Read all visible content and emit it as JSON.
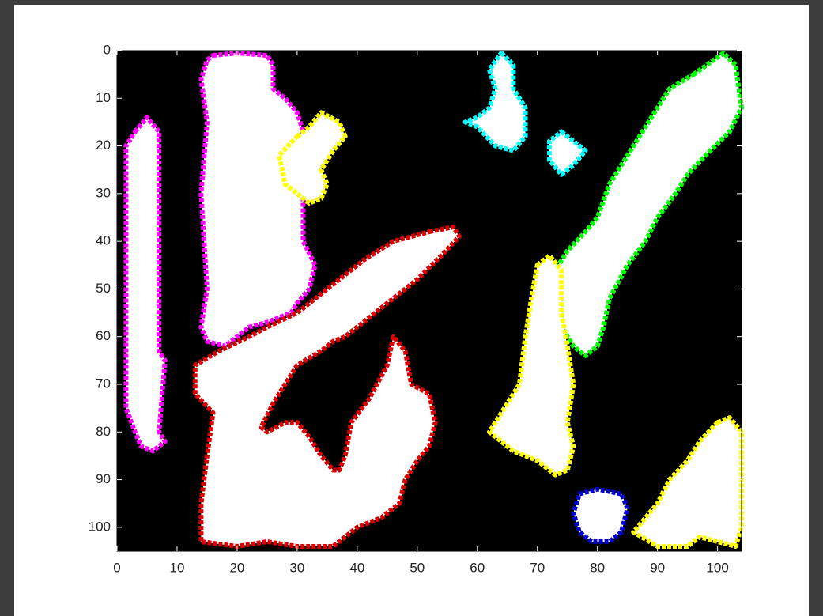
{
  "chart_data": {
    "type": "image-boundaries",
    "xlim": [
      0,
      104
    ],
    "ylim": [
      0,
      105
    ],
    "y_reversed": true,
    "xticks": [
      0,
      10,
      20,
      30,
      40,
      50,
      60,
      70,
      80,
      90,
      100
    ],
    "yticks": [
      0,
      10,
      20,
      30,
      40,
      50,
      60,
      70,
      80,
      90,
      100
    ],
    "background": "#000000",
    "fill": "#ffffff",
    "boundaries": [
      {
        "color": "#ff00ff",
        "x": [
          3,
          5,
          7,
          7,
          8,
          7,
          8,
          6,
          4,
          3,
          1.5,
          1.5
        ],
        "y": [
          17,
          14,
          17,
          63,
          65,
          80,
          82,
          84,
          83,
          80,
          75,
          20
        ]
      },
      {
        "color": "#ff00ff",
        "x": [
          16,
          20,
          25,
          26,
          26,
          28,
          30,
          31,
          30,
          31,
          31,
          33,
          32,
          30,
          29,
          25,
          22,
          20,
          18,
          15,
          14,
          15,
          14,
          15,
          14,
          15
        ],
        "y": [
          1,
          0.5,
          1,
          3,
          8,
          10,
          13,
          17,
          25,
          30,
          40,
          45,
          50,
          53,
          55,
          57,
          58,
          60,
          62,
          61,
          58,
          50,
          30,
          15,
          6,
          2
        ]
      },
      {
        "color": "#ffff00",
        "x": [
          30,
          32,
          34,
          37,
          38,
          36,
          34,
          35,
          34,
          32,
          30,
          28,
          27
        ],
        "y": [
          18,
          16,
          13,
          15,
          18,
          21,
          25,
          28,
          31,
          32,
          30,
          28,
          22
        ]
      },
      {
        "color": "#00ffff",
        "x": [
          64,
          66,
          66,
          68,
          68,
          66,
          63,
          60,
          58,
          60,
          62,
          63,
          62
        ],
        "y": [
          0.5,
          3,
          8,
          12,
          18,
          21,
          20,
          16,
          15,
          14,
          12,
          8,
          4
        ]
      },
      {
        "color": "#00ffff",
        "x": [
          74,
          76,
          78,
          76,
          74,
          72,
          72
        ],
        "y": [
          17,
          19,
          21,
          24,
          26,
          23,
          19
        ]
      },
      {
        "color": "#00ff00",
        "x": [
          96,
          101,
          103,
          104,
          102,
          98,
          95,
          93,
          90,
          88,
          85,
          82,
          81,
          80,
          78,
          76,
          74,
          74,
          72,
          75,
          78,
          80,
          82,
          85,
          87,
          89,
          92
        ],
        "y": [
          5,
          0.5,
          3,
          12,
          17,
          22,
          26,
          30,
          35,
          40,
          45,
          52,
          58,
          62,
          64,
          62,
          58,
          52,
          48,
          42,
          38,
          35,
          28,
          22,
          18,
          14,
          8
        ]
      },
      {
        "color": "#ffff00",
        "x": [
          70,
          72,
          74,
          74,
          75,
          76,
          75,
          76,
          75,
          73,
          70,
          66,
          62,
          64,
          67,
          68,
          69
        ],
        "y": [
          45,
          43,
          46,
          55,
          62,
          70,
          78,
          83,
          88,
          89,
          86,
          84,
          80,
          76,
          70,
          60,
          52
        ]
      },
      {
        "color": "#ffff00",
        "x": [
          100,
          102,
          104,
          104,
          103,
          100,
          97,
          95,
          90,
          86,
          88,
          90,
          92,
          95,
          97
        ],
        "y": [
          78,
          77,
          80,
          100,
          104,
          103,
          102,
          104,
          104,
          101,
          98,
          95,
          90,
          86,
          82
        ]
      },
      {
        "color": "#0000cc",
        "x": [
          77,
          80,
          84,
          85,
          84,
          82,
          79,
          77,
          76
        ],
        "y": [
          93,
          92,
          93,
          96,
          101,
          103,
          103,
          101,
          97
        ]
      },
      {
        "color": "#dd0000",
        "x": [
          52,
          56,
          57,
          54,
          50,
          46,
          42,
          38,
          36,
          34,
          30,
          28,
          26,
          24,
          25,
          28,
          30,
          32,
          34,
          36,
          37,
          38,
          39,
          42,
          45,
          46,
          48,
          49,
          52,
          53,
          52,
          50,
          48,
          47,
          44,
          40,
          36,
          30,
          25,
          20,
          14,
          14,
          15,
          16,
          13,
          13,
          17,
          22,
          25,
          30,
          33,
          37,
          41,
          46
        ],
        "y": [
          38,
          37,
          39,
          43,
          48,
          52,
          56,
          60,
          61,
          63,
          66,
          70,
          74,
          79,
          80,
          78,
          78,
          81,
          85,
          88,
          88,
          85,
          78,
          73,
          66,
          60,
          63,
          70,
          72,
          78,
          83,
          86,
          90,
          95,
          98,
          100,
          104,
          104,
          103,
          104,
          103,
          95,
          85,
          76,
          72,
          66,
          63,
          60,
          58,
          55,
          52,
          48,
          44,
          40
        ]
      }
    ]
  }
}
